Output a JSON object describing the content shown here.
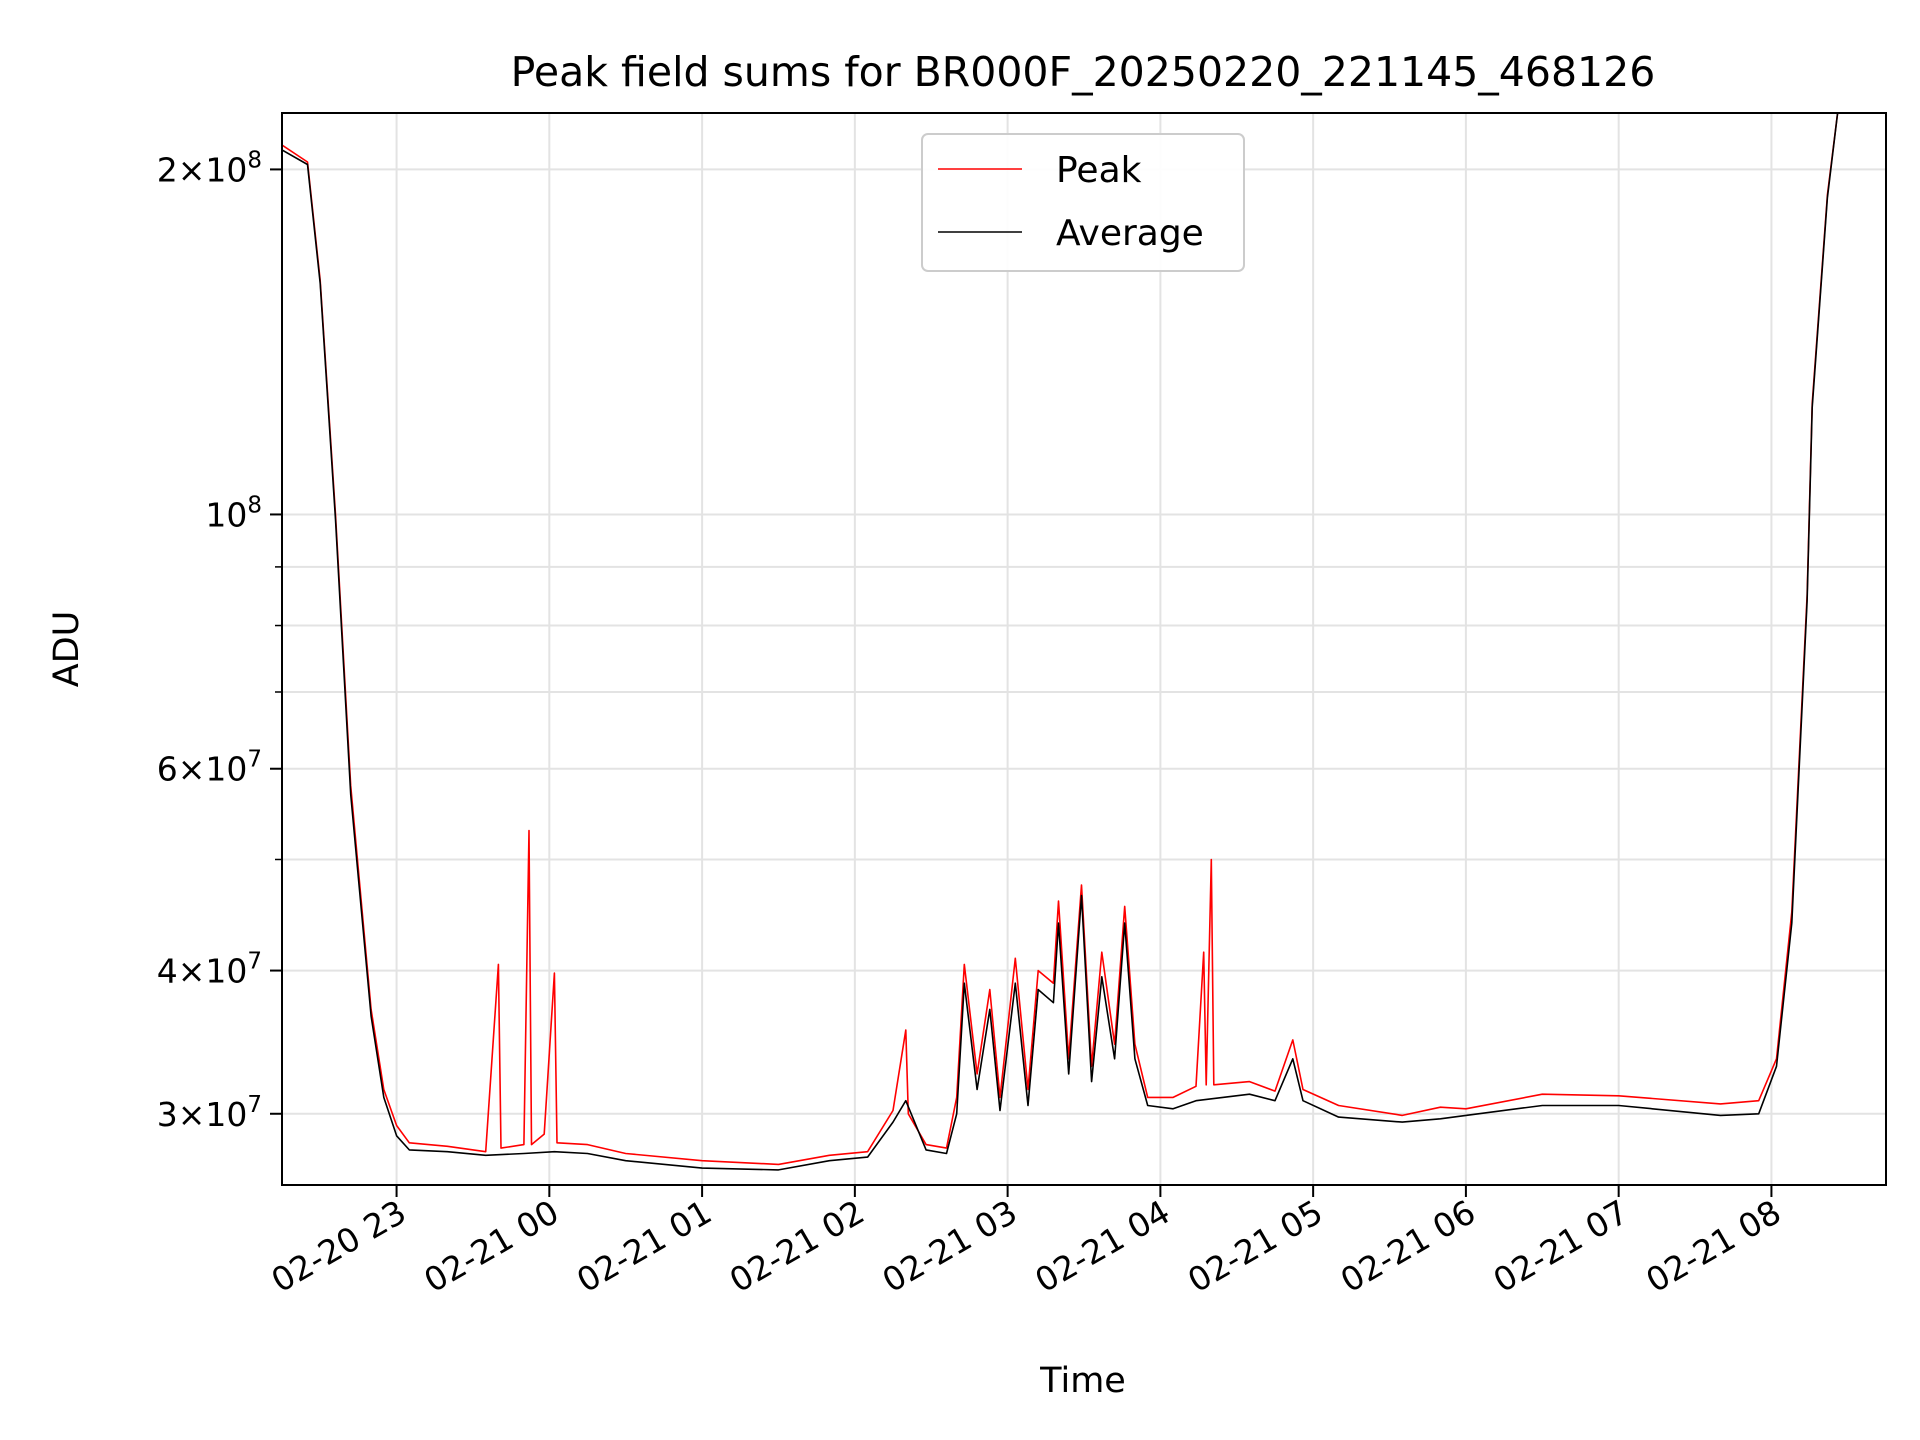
{
  "chart_data": {
    "type": "line",
    "title": "Peak field sums for BR000F_20250220_221145_468126",
    "xlabel": "Time",
    "ylabel": "ADU",
    "yscale": "log",
    "ylim": [
      26000000,
      224000000
    ],
    "xlim": [
      "2025-02-20 22:15",
      "2025-02-21 08:45"
    ],
    "grid": true,
    "legend_position": "upper center",
    "x_ticks": [
      {
        "t": "2025-02-20 23:00",
        "label": "02-20 23"
      },
      {
        "t": "2025-02-21 00:00",
        "label": "02-21 00"
      },
      {
        "t": "2025-02-21 01:00",
        "label": "02-21 01"
      },
      {
        "t": "2025-02-21 02:00",
        "label": "02-21 02"
      },
      {
        "t": "2025-02-21 03:00",
        "label": "02-21 03"
      },
      {
        "t": "2025-02-21 04:00",
        "label": "02-21 04"
      },
      {
        "t": "2025-02-21 05:00",
        "label": "02-21 05"
      },
      {
        "t": "2025-02-21 06:00",
        "label": "02-21 06"
      },
      {
        "t": "2025-02-21 07:00",
        "label": "02-21 07"
      },
      {
        "t": "2025-02-21 08:00",
        "label": "02-21 08"
      }
    ],
    "y_major_ticks": [
      {
        "value": 30000000,
        "mantissa": "3",
        "exp": "7"
      },
      {
        "value": 40000000,
        "mantissa": "4",
        "exp": "7"
      },
      {
        "value": 60000000,
        "mantissa": "6",
        "exp": "7"
      },
      {
        "value": 100000000,
        "mantissa": "",
        "exp": "8"
      },
      {
        "value": 200000000,
        "mantissa": "2",
        "exp": "8"
      }
    ],
    "y_minor_ticks": [
      50000000,
      70000000,
      80000000,
      90000000
    ],
    "series": [
      {
        "name": "Peak",
        "color": "#ff0000",
        "points": [
          [
            "2025-02-20 22:15",
            210000000
          ],
          [
            "2025-02-20 22:25",
            203000000
          ],
          [
            "2025-02-20 22:30",
            160000000
          ],
          [
            "2025-02-20 22:36",
            100000000
          ],
          [
            "2025-02-20 22:42",
            58000000
          ],
          [
            "2025-02-20 22:50",
            37000000
          ],
          [
            "2025-02-20 22:55",
            31500000
          ],
          [
            "2025-02-20 23:00",
            29300000
          ],
          [
            "2025-02-20 23:05",
            28300000
          ],
          [
            "2025-02-20 23:20",
            28100000
          ],
          [
            "2025-02-20 23:35",
            27800000
          ],
          [
            "2025-02-20 23:40",
            40500000
          ],
          [
            "2025-02-20 23:41",
            28000000
          ],
          [
            "2025-02-20 23:50",
            28200000
          ],
          [
            "2025-02-20 23:52",
            53000000
          ],
          [
            "2025-02-20 23:53",
            28200000
          ],
          [
            "2025-02-20 23:58",
            28800000
          ],
          [
            "2025-02-21 00:02",
            39800000
          ],
          [
            "2025-02-21 00:03",
            28300000
          ],
          [
            "2025-02-21 00:15",
            28200000
          ],
          [
            "2025-02-21 00:30",
            27700000
          ],
          [
            "2025-02-21 01:00",
            27300000
          ],
          [
            "2025-02-21 01:30",
            27100000
          ],
          [
            "2025-02-21 01:50",
            27600000
          ],
          [
            "2025-02-21 02:05",
            27800000
          ],
          [
            "2025-02-21 02:15",
            30200000
          ],
          [
            "2025-02-21 02:20",
            35500000
          ],
          [
            "2025-02-21 02:21",
            30000000
          ],
          [
            "2025-02-21 02:28",
            28200000
          ],
          [
            "2025-02-21 02:36",
            28000000
          ],
          [
            "2025-02-21 02:40",
            31000000
          ],
          [
            "2025-02-21 02:43",
            40500000
          ],
          [
            "2025-02-21 02:48",
            32500000
          ],
          [
            "2025-02-21 02:53",
            38500000
          ],
          [
            "2025-02-21 02:57",
            31000000
          ],
          [
            "2025-02-21 03:03",
            41000000
          ],
          [
            "2025-02-21 03:08",
            31500000
          ],
          [
            "2025-02-21 03:12",
            40000000
          ],
          [
            "2025-02-21 03:18",
            39000000
          ],
          [
            "2025-02-21 03:20",
            46000000
          ],
          [
            "2025-02-21 03:24",
            33500000
          ],
          [
            "2025-02-21 03:29",
            47500000
          ],
          [
            "2025-02-21 03:33",
            33000000
          ],
          [
            "2025-02-21 03:37",
            41500000
          ],
          [
            "2025-02-21 03:42",
            34500000
          ],
          [
            "2025-02-21 03:46",
            45500000
          ],
          [
            "2025-02-21 03:50",
            34500000
          ],
          [
            "2025-02-21 03:55",
            31000000
          ],
          [
            "2025-02-21 04:05",
            31000000
          ],
          [
            "2025-02-21 04:14",
            31700000
          ],
          [
            "2025-02-21 04:17",
            41500000
          ],
          [
            "2025-02-21 04:18",
            31800000
          ],
          [
            "2025-02-21 04:20",
            50000000
          ],
          [
            "2025-02-21 04:21",
            31800000
          ],
          [
            "2025-02-21 04:35",
            32000000
          ],
          [
            "2025-02-21 04:45",
            31400000
          ],
          [
            "2025-02-21 04:52",
            34800000
          ],
          [
            "2025-02-21 04:56",
            31500000
          ],
          [
            "2025-02-21 05:10",
            30500000
          ],
          [
            "2025-02-21 05:35",
            29900000
          ],
          [
            "2025-02-21 05:50",
            30400000
          ],
          [
            "2025-02-21 06:00",
            30300000
          ],
          [
            "2025-02-21 06:30",
            31200000
          ],
          [
            "2025-02-21 07:00",
            31100000
          ],
          [
            "2025-02-21 07:40",
            30600000
          ],
          [
            "2025-02-21 07:55",
            30800000
          ],
          [
            "2025-02-21 08:02",
            33500000
          ],
          [
            "2025-02-21 08:08",
            45000000
          ],
          [
            "2025-02-21 08:14",
            85000000
          ],
          [
            "2025-02-21 08:16",
            125000000
          ],
          [
            "2025-02-21 08:22",
            190000000
          ],
          [
            "2025-02-21 08:26",
            224000000
          ],
          [
            "2025-02-21 08:30",
            224000000
          ]
        ]
      },
      {
        "name": "Average",
        "color": "#000000",
        "points": [
          [
            "2025-02-20 22:15",
            208000000
          ],
          [
            "2025-02-20 22:25",
            202000000
          ],
          [
            "2025-02-20 22:30",
            159000000
          ],
          [
            "2025-02-20 22:36",
            99000000
          ],
          [
            "2025-02-20 22:42",
            57000000
          ],
          [
            "2025-02-20 22:50",
            36500000
          ],
          [
            "2025-02-20 22:55",
            31000000
          ],
          [
            "2025-02-20 23:00",
            28700000
          ],
          [
            "2025-02-20 23:05",
            27900000
          ],
          [
            "2025-02-20 23:20",
            27800000
          ],
          [
            "2025-02-20 23:35",
            27600000
          ],
          [
            "2025-02-20 23:50",
            27700000
          ],
          [
            "2025-02-21 00:02",
            27800000
          ],
          [
            "2025-02-21 00:15",
            27700000
          ],
          [
            "2025-02-21 00:30",
            27300000
          ],
          [
            "2025-02-21 01:00",
            26900000
          ],
          [
            "2025-02-21 01:30",
            26800000
          ],
          [
            "2025-02-21 01:50",
            27300000
          ],
          [
            "2025-02-21 02:05",
            27500000
          ],
          [
            "2025-02-21 02:15",
            29500000
          ],
          [
            "2025-02-21 02:20",
            30800000
          ],
          [
            "2025-02-21 02:28",
            27900000
          ],
          [
            "2025-02-21 02:36",
            27700000
          ],
          [
            "2025-02-21 02:40",
            30000000
          ],
          [
            "2025-02-21 02:43",
            39000000
          ],
          [
            "2025-02-21 02:48",
            31500000
          ],
          [
            "2025-02-21 02:53",
            37000000
          ],
          [
            "2025-02-21 02:57",
            30200000
          ],
          [
            "2025-02-21 03:03",
            39000000
          ],
          [
            "2025-02-21 03:08",
            30500000
          ],
          [
            "2025-02-21 03:12",
            38500000
          ],
          [
            "2025-02-21 03:18",
            37500000
          ],
          [
            "2025-02-21 03:20",
            44000000
          ],
          [
            "2025-02-21 03:24",
            32500000
          ],
          [
            "2025-02-21 03:29",
            46500000
          ],
          [
            "2025-02-21 03:33",
            32000000
          ],
          [
            "2025-02-21 03:37",
            39500000
          ],
          [
            "2025-02-21 03:42",
            33500000
          ],
          [
            "2025-02-21 03:46",
            44000000
          ],
          [
            "2025-02-21 03:50",
            33500000
          ],
          [
            "2025-02-21 03:55",
            30500000
          ],
          [
            "2025-02-21 04:05",
            30300000
          ],
          [
            "2025-02-21 04:14",
            30800000
          ],
          [
            "2025-02-21 04:35",
            31200000
          ],
          [
            "2025-02-21 04:45",
            30800000
          ],
          [
            "2025-02-21 04:52",
            33500000
          ],
          [
            "2025-02-21 04:56",
            30800000
          ],
          [
            "2025-02-21 05:10",
            29800000
          ],
          [
            "2025-02-21 05:35",
            29500000
          ],
          [
            "2025-02-21 05:50",
            29700000
          ],
          [
            "2025-02-21 06:00",
            29900000
          ],
          [
            "2025-02-21 06:30",
            30500000
          ],
          [
            "2025-02-21 07:00",
            30500000
          ],
          [
            "2025-02-21 07:40",
            29900000
          ],
          [
            "2025-02-21 07:55",
            30000000
          ],
          [
            "2025-02-21 08:02",
            33000000
          ],
          [
            "2025-02-21 08:08",
            44000000
          ],
          [
            "2025-02-21 08:14",
            84000000
          ],
          [
            "2025-02-21 08:16",
            124000000
          ],
          [
            "2025-02-21 08:22",
            189000000
          ],
          [
            "2025-02-21 08:26",
            224000000
          ],
          [
            "2025-02-21 08:30",
            224000000
          ]
        ]
      }
    ]
  }
}
